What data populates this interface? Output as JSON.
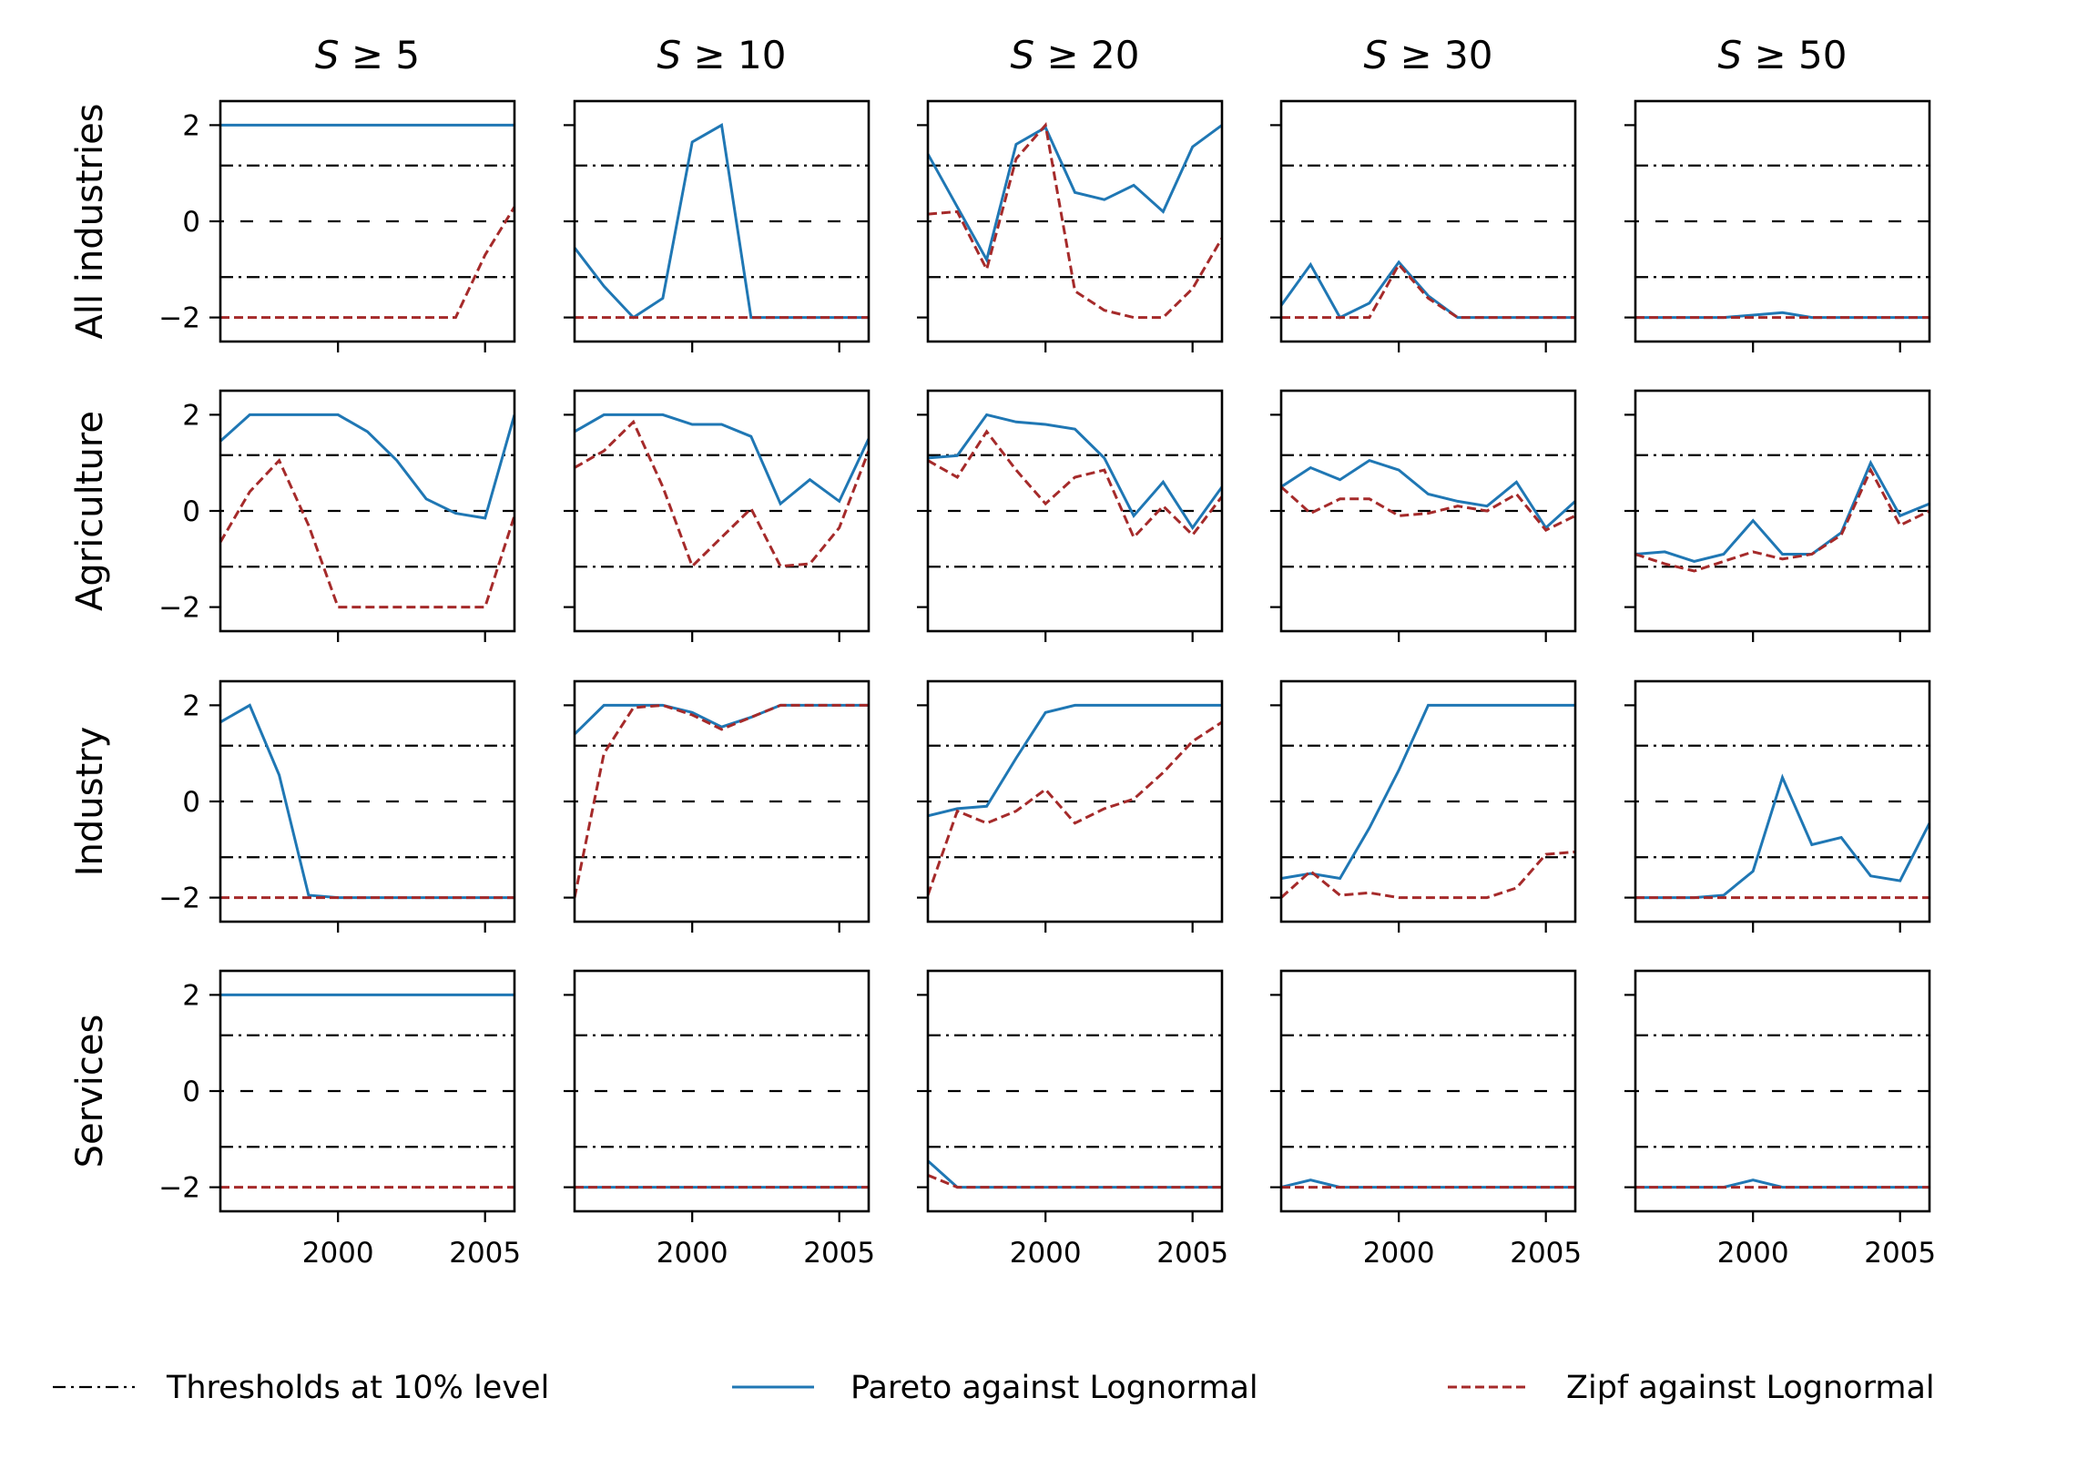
{
  "figure": {
    "row_labels": [
      "All industries",
      "Agriculture",
      "Industry",
      "Services"
    ],
    "col_titles": [
      "S ≥ 5",
      "S ≥ 10",
      "S ≥ 20",
      "S ≥ 30",
      "S ≥ 50"
    ],
    "legend": [
      {
        "key": "threshold",
        "label": "Thresholds at 10% level",
        "color": "#000000"
      },
      {
        "key": "pareto",
        "label": "Pareto against Lognormal",
        "color": "#1f77b4"
      },
      {
        "key": "zipf",
        "label": "Zipf against Lognormal",
        "color": "#a52a2a"
      }
    ]
  },
  "chart_data": {
    "type": "line",
    "layout": "grid 4 rows x 5 columns, shared axes",
    "x": [
      1996,
      1997,
      1998,
      1999,
      2000,
      2001,
      2002,
      2003,
      2004,
      2005,
      2006
    ],
    "xlim": [
      1996,
      2006
    ],
    "ylim": [
      -2.5,
      2.5
    ],
    "xticks": [
      2000,
      2005
    ],
    "yticks": [
      -2,
      0,
      2
    ],
    "xtick_labels": [
      "2000",
      "2005"
    ],
    "ytick_labels": [
      "−2",
      "0",
      "2"
    ],
    "reference_lines": {
      "zero": 0,
      "thresholds": [
        1.16,
        -1.16
      ]
    },
    "panels": [
      [
        {
          "pareto": [
            2,
            2,
            2,
            2,
            2,
            2,
            2,
            2,
            2,
            2,
            2
          ],
          "zipf": [
            -2,
            -2,
            -2,
            -2,
            -2,
            -2,
            -2,
            -2,
            -2,
            -0.7,
            0.3
          ]
        },
        {
          "pareto": [
            -0.55,
            -1.35,
            -2,
            -1.6,
            1.65,
            2,
            -2,
            -2,
            -2,
            -2,
            -2
          ],
          "zipf": [
            -2,
            -2,
            -2,
            -2,
            -2,
            -2,
            -2,
            -2,
            -2,
            -2,
            -2
          ]
        },
        {
          "pareto": [
            1.4,
            0.3,
            -0.8,
            1.6,
            1.95,
            0.6,
            0.45,
            0.75,
            0.2,
            1.55,
            2
          ],
          "zipf": [
            0.15,
            0.2,
            -1,
            1.3,
            2,
            -1.45,
            -1.85,
            -2,
            -2,
            -1.4,
            -0.35
          ]
        },
        {
          "pareto": [
            -1.75,
            -0.9,
            -2,
            -1.7,
            -0.85,
            -1.55,
            -2,
            -2,
            -2,
            -2,
            -2
          ],
          "zipf": [
            -2,
            -2,
            -2,
            -2,
            -0.9,
            -1.6,
            -2,
            -2,
            -2,
            -2,
            -2
          ]
        },
        {
          "pareto": [
            -2,
            -2,
            -2,
            -2,
            -1.95,
            -1.9,
            -2,
            -2,
            -2,
            -2,
            -2
          ],
          "zipf": [
            -2,
            -2,
            -2,
            -2,
            -2,
            -2,
            -2,
            -2,
            -2,
            -2,
            -2
          ]
        }
      ],
      [
        {
          "pareto": [
            1.45,
            2,
            2,
            2,
            2,
            1.65,
            1.05,
            0.25,
            -0.05,
            -0.15,
            2
          ],
          "zipf": [
            -0.65,
            0.4,
            1.05,
            -0.3,
            -2,
            -2,
            -2,
            -2,
            -2,
            -2,
            -0.1
          ]
        },
        {
          "pareto": [
            1.65,
            2,
            2,
            2,
            1.8,
            1.8,
            1.55,
            0.15,
            0.65,
            0.2,
            1.5
          ],
          "zipf": [
            0.9,
            1.25,
            1.85,
            0.5,
            -1.15,
            -0.55,
            0.05,
            -1.15,
            -1.1,
            -0.35,
            1.25
          ]
        },
        {
          "pareto": [
            1.1,
            1.15,
            2,
            1.85,
            1.8,
            1.7,
            1.1,
            -0.1,
            0.6,
            -0.35,
            0.5
          ],
          "zipf": [
            1.05,
            0.7,
            1.65,
            0.85,
            0.15,
            0.7,
            0.85,
            -0.55,
            0.1,
            -0.5,
            0.3
          ]
        },
        {
          "pareto": [
            0.5,
            0.9,
            0.65,
            1.05,
            0.85,
            0.35,
            0.2,
            0.1,
            0.6,
            -0.35,
            0.2
          ],
          "zipf": [
            0.5,
            -0.05,
            0.25,
            0.25,
            -0.1,
            -0.05,
            0.1,
            0,
            0.35,
            -0.4,
            -0.1
          ]
        },
        {
          "pareto": [
            -0.9,
            -0.85,
            -1.05,
            -0.9,
            -0.2,
            -0.9,
            -0.9,
            -0.45,
            1,
            -0.1,
            0.15
          ],
          "zipf": [
            -0.9,
            -1.1,
            -1.25,
            -1.05,
            -0.85,
            -1,
            -0.9,
            -0.5,
            0.85,
            -0.3,
            0
          ]
        }
      ],
      [
        {
          "pareto": [
            1.65,
            2,
            0.55,
            -1.95,
            -2,
            -2,
            -2,
            -2,
            -2,
            -2,
            -2
          ],
          "zipf": [
            -2,
            -2,
            -2,
            -2,
            -2,
            -2,
            -2,
            -2,
            -2,
            -2,
            -2
          ]
        },
        {
          "pareto": [
            1.4,
            2,
            2,
            2,
            1.85,
            1.55,
            1.75,
            2,
            2,
            2,
            2
          ],
          "zipf": [
            -2,
            1,
            1.95,
            2,
            1.8,
            1.5,
            1.75,
            2,
            2,
            2,
            2
          ]
        },
        {
          "pareto": [
            -0.3,
            -0.15,
            -0.1,
            0.9,
            1.85,
            2,
            2,
            2,
            2,
            2,
            2
          ],
          "zipf": [
            -1.95,
            -0.2,
            -0.45,
            -0.2,
            0.25,
            -0.45,
            -0.15,
            0.05,
            0.6,
            1.25,
            1.65
          ]
        },
        {
          "pareto": [
            -1.6,
            -1.5,
            -1.6,
            -0.55,
            0.65,
            2,
            2,
            2,
            2,
            2,
            2
          ],
          "zipf": [
            -2,
            -1.45,
            -1.95,
            -1.9,
            -2,
            -2,
            -2,
            -2,
            -1.8,
            -1.1,
            -1.05
          ]
        },
        {
          "pareto": [
            -2,
            -2,
            -2,
            -1.95,
            -1.45,
            0.5,
            -0.9,
            -0.75,
            -1.55,
            -1.65,
            -0.45
          ],
          "zipf": [
            -2,
            -2,
            -2,
            -2,
            -2,
            -2,
            -2,
            -2,
            -2,
            -2,
            -2
          ]
        }
      ],
      [
        {
          "pareto": [
            2,
            2,
            2,
            2,
            2,
            2,
            2,
            2,
            2,
            2,
            2
          ],
          "zipf": [
            -2,
            -2,
            -2,
            -2,
            -2,
            -2,
            -2,
            -2,
            -2,
            -2,
            -2
          ]
        },
        {
          "pareto": [
            -2,
            -2,
            -2,
            -2,
            -2,
            -2,
            -2,
            -2,
            -2,
            -2,
            -2
          ],
          "zipf": [
            -2,
            -2,
            -2,
            -2,
            -2,
            -2,
            -2,
            -2,
            -2,
            -2,
            -2
          ]
        },
        {
          "pareto": [
            -1.45,
            -2,
            -2,
            -2,
            -2,
            -2,
            -2,
            -2,
            -2,
            -2,
            -2
          ],
          "zipf": [
            -1.75,
            -2,
            -2,
            -2,
            -2,
            -2,
            -2,
            -2,
            -2,
            -2,
            -2
          ]
        },
        {
          "pareto": [
            -2,
            -1.85,
            -2,
            -2,
            -2,
            -2,
            -2,
            -2,
            -2,
            -2,
            -2
          ],
          "zipf": [
            -2,
            -2,
            -2,
            -2,
            -2,
            -2,
            -2,
            -2,
            -2,
            -2,
            -2
          ]
        },
        {
          "pareto": [
            -2,
            -2,
            -2,
            -2,
            -1.85,
            -2,
            -2,
            -2,
            -2,
            -2,
            -2
          ],
          "zipf": [
            -2,
            -2,
            -2,
            -2,
            -2,
            -2,
            -2,
            -2,
            -2,
            -2,
            -2
          ]
        }
      ]
    ]
  }
}
